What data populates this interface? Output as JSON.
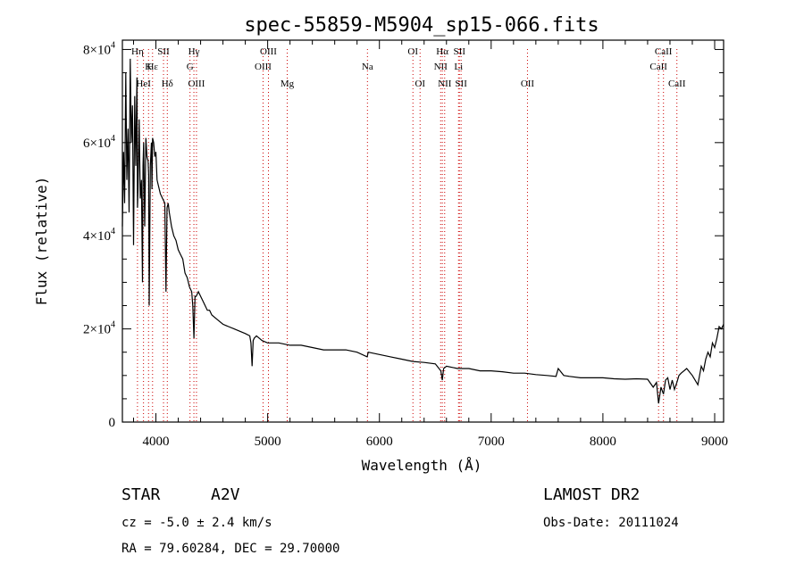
{
  "chart_data": {
    "type": "line",
    "title": "spec-55859-M5904_sp15-066.fits",
    "xlabel": "Wavelength (Å)",
    "ylabel": "Flux (relative)",
    "xlim": [
      3700,
      9080
    ],
    "ylim": [
      0,
      82000
    ],
    "x_ticks": [
      4000,
      5000,
      6000,
      7000,
      8000,
      9000
    ],
    "y_ticks": [
      {
        "value": 0,
        "mantissa": "0",
        "exponent": ""
      },
      {
        "value": 20000,
        "mantissa": "2×10",
        "exponent": "4"
      },
      {
        "value": 40000,
        "mantissa": "4×10",
        "exponent": "4"
      },
      {
        "value": 60000,
        "mantissa": "6×10",
        "exponent": "4"
      },
      {
        "value": 80000,
        "mantissa": "8×10",
        "exponent": "4"
      }
    ],
    "series": [
      {
        "name": "flux",
        "x": [
          3700,
          3710,
          3720,
          3730,
          3740,
          3750,
          3760,
          3770,
          3780,
          3790,
          3800,
          3810,
          3820,
          3830,
          3835,
          3840,
          3850,
          3860,
          3870,
          3880,
          3885,
          3890,
          3900,
          3910,
          3920,
          3930,
          3935,
          3940,
          3950,
          3960,
          3965,
          3970,
          3980,
          3990,
          4000,
          4010,
          4020,
          4040,
          4060,
          4080,
          4090,
          4100,
          4110,
          4120,
          4140,
          4160,
          4180,
          4200,
          4220,
          4240,
          4260,
          4280,
          4300,
          4320,
          4330,
          4340,
          4350,
          4360,
          4380,
          4400,
          4420,
          4440,
          4460,
          4480,
          4500,
          4550,
          4600,
          4650,
          4700,
          4750,
          4800,
          4840,
          4850,
          4861,
          4870,
          4880,
          4900,
          4950,
          5000,
          5100,
          5200,
          5300,
          5400,
          5500,
          5600,
          5700,
          5800,
          5890,
          5900,
          6000,
          6100,
          6200,
          6300,
          6400,
          6500,
          6550,
          6563,
          6575,
          6600,
          6700,
          6800,
          6900,
          7000,
          7100,
          7200,
          7300,
          7400,
          7500,
          7580,
          7600,
          7650,
          7700,
          7800,
          7900,
          8000,
          8100,
          8200,
          8300,
          8400,
          8450,
          8480,
          8498,
          8520,
          8542,
          8560,
          8580,
          8600,
          8620,
          8640,
          8662,
          8680,
          8700,
          8750,
          8800,
          8850,
          8880,
          8900,
          8920,
          8940,
          8960,
          8980,
          9000,
          9020,
          9040,
          9060,
          9080
        ],
        "y": [
          42000,
          58000,
          47000,
          75000,
          52000,
          63000,
          45000,
          78000,
          60000,
          68000,
          38000,
          70000,
          55000,
          74000,
          46000,
          50000,
          65000,
          48000,
          52000,
          30000,
          55000,
          60000,
          42000,
          61000,
          57000,
          56000,
          53000,
          25000,
          55000,
          60000,
          50000,
          61000,
          60000,
          57000,
          58000,
          52000,
          51000,
          49000,
          48000,
          47000,
          28000,
          46000,
          47000,
          45000,
          42000,
          40000,
          39000,
          37000,
          36000,
          35000,
          32000,
          31000,
          29000,
          28000,
          25000,
          18000,
          27000,
          27000,
          28000,
          27000,
          26000,
          25000,
          24000,
          24000,
          23000,
          22000,
          21000,
          20500,
          20000,
          19500,
          19000,
          18500,
          17000,
          12000,
          17500,
          18000,
          18500,
          17500,
          17000,
          17000,
          16500,
          16500,
          16000,
          15500,
          15500,
          15500,
          15000,
          14000,
          15000,
          14500,
          14000,
          13500,
          13000,
          12800,
          12500,
          11000,
          9000,
          11500,
          12000,
          11500,
          11500,
          11000,
          11000,
          10800,
          10500,
          10500,
          10200,
          10000,
          9800,
          11500,
          10000,
          9800,
          9500,
          9500,
          9500,
          9300,
          9200,
          9300,
          9200,
          7500,
          8500,
          4000,
          7500,
          6000,
          9000,
          9500,
          7000,
          9000,
          7000,
          8500,
          10000,
          10500,
          11500,
          10000,
          8000,
          12000,
          11000,
          13500,
          15000,
          14000,
          17000,
          16000,
          18000,
          20500,
          20000,
          21000
        ]
      }
    ],
    "spectral_lines": [
      {
        "label": "Hη",
        "wavelength": 3835,
        "row": 1
      },
      {
        "label": "Hε",
        "wavelength": 3970,
        "row": 2
      },
      {
        "label": "HeI",
        "wavelength": 3889,
        "row": 3
      },
      {
        "label": "K",
        "wavelength": 3934,
        "row": 2
      },
      {
        "label": "SII",
        "wavelength": 4068,
        "row": 1
      },
      {
        "label": "Hδ",
        "wavelength": 4102,
        "row": 3
      },
      {
        "label": "Hγ",
        "wavelength": 4340,
        "row": 1
      },
      {
        "label": "G",
        "wavelength": 4305,
        "row": 2
      },
      {
        "label": "OIII",
        "wavelength": 4363,
        "row": 3
      },
      {
        "label": "OIII",
        "wavelength": 5007,
        "row": 1
      },
      {
        "label": "OIII",
        "wavelength": 4959,
        "row": 2
      },
      {
        "label": "Mg",
        "wavelength": 5175,
        "row": 3
      },
      {
        "label": "Na",
        "wavelength": 5893,
        "row": 2
      },
      {
        "label": "OI",
        "wavelength": 6300,
        "row": 1
      },
      {
        "label": "OI",
        "wavelength": 6364,
        "row": 3
      },
      {
        "label": "Hα",
        "wavelength": 6563,
        "row": 1
      },
      {
        "label": "SII",
        "wavelength": 6716,
        "row": 1
      },
      {
        "label": "NII",
        "wavelength": 6548,
        "row": 2
      },
      {
        "label": "Li",
        "wavelength": 6708,
        "row": 2
      },
      {
        "label": "NII",
        "wavelength": 6584,
        "row": 3
      },
      {
        "label": "SII",
        "wavelength": 6731,
        "row": 3
      },
      {
        "label": "OII",
        "wavelength": 7325,
        "row": 3
      },
      {
        "label": "CaII",
        "wavelength": 8542,
        "row": 1
      },
      {
        "label": "CaII",
        "wavelength": 8498,
        "row": 2
      },
      {
        "label": "CaII",
        "wavelength": 8662,
        "row": 3
      }
    ]
  },
  "info": {
    "object_class": "STAR",
    "subclass": "A2V",
    "survey": "LAMOST DR2",
    "redshift": "cz = -5.0 ± 2.4 km/s",
    "obs_date": "Obs-Date: 20111024",
    "coords": "RA =  79.60284, DEC =  29.70000"
  },
  "colors": {
    "spectrum": "#000000",
    "marker": "#cc0000",
    "axes": "#000000"
  }
}
